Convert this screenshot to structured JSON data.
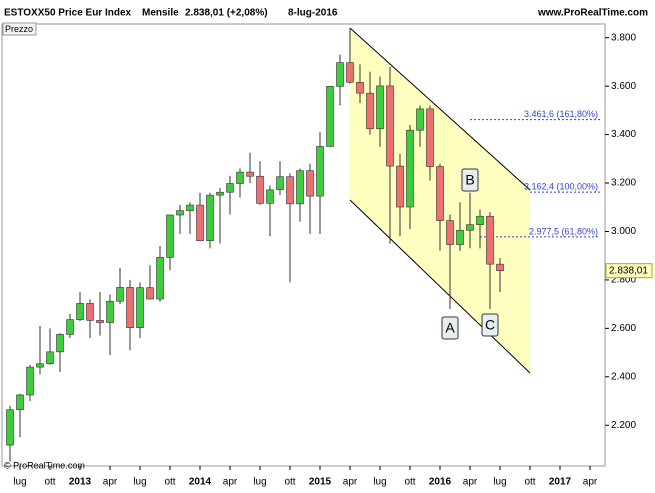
{
  "chart_data": {
    "type": "candlestick",
    "title": "ESTOXX50 Price Eur Index",
    "period": "Mensile",
    "last": "2.838,01 (+2,08%)",
    "date": "8-lug-2016",
    "source": "www.ProRealTime.com",
    "panel_label": "Prezzo",
    "copyright": "© ProRealTime.com",
    "x": [
      "2012-06",
      "2012-07",
      "2012-08",
      "2012-09",
      "2012-10",
      "2012-11",
      "2012-12",
      "2013-01",
      "2013-02",
      "2013-03",
      "2013-04",
      "2013-05",
      "2013-06",
      "2013-07",
      "2013-08",
      "2013-09",
      "2013-10",
      "2013-11",
      "2013-12",
      "2014-01",
      "2014-02",
      "2014-03",
      "2014-04",
      "2014-05",
      "2014-06",
      "2014-07",
      "2014-08",
      "2014-09",
      "2014-10",
      "2014-11",
      "2014-12",
      "2015-01",
      "2015-02",
      "2015-03",
      "2015-04",
      "2015-05",
      "2015-06",
      "2015-07",
      "2015-08",
      "2015-09",
      "2015-10",
      "2015-11",
      "2015-12",
      "2016-01",
      "2016-02",
      "2016-03",
      "2016-04",
      "2016-05",
      "2016-06",
      "2016-07"
    ],
    "open": [
      2118,
      2264,
      2325,
      2440,
      2454,
      2503,
      2575,
      2636,
      2703,
      2633,
      2624,
      2712,
      2769,
      2603,
      2768,
      2721,
      2893,
      3068,
      3086,
      3109,
      2962,
      3150,
      3162,
      3198,
      3245,
      3228,
      3116,
      3172,
      3226,
      3114,
      3251,
      3146,
      3351,
      3599,
      3697,
      3616,
      3571,
      3424,
      3601,
      3270,
      3101,
      3418,
      3506,
      3268,
      3045,
      2946,
      3005,
      3028,
      3063,
      2865
    ],
    "high": [
      2280,
      2330,
      2450,
      2610,
      2600,
      2580,
      2660,
      2750,
      2720,
      2750,
      2740,
      2850,
      2800,
      2790,
      2860,
      2940,
      3070,
      3110,
      3120,
      3160,
      3160,
      3180,
      3230,
      3260,
      3325,
      3290,
      3190,
      3290,
      3240,
      3260,
      3280,
      3410,
      3600,
      3730,
      3840,
      3690,
      3660,
      3640,
      3680,
      3320,
      3440,
      3520,
      3520,
      3280,
      3070,
      3120,
      3160,
      3090,
      3080,
      2890
    ],
    "low": [
      2050,
      2150,
      2300,
      2410,
      2450,
      2420,
      2560,
      2630,
      2560,
      2570,
      2490,
      2700,
      2510,
      2560,
      2720,
      2710,
      2840,
      2990,
      2990,
      2960,
      2930,
      2950,
      3070,
      3140,
      3200,
      3110,
      2980,
      3150,
      2790,
      3040,
      2990,
      2990,
      3350,
      3520,
      3610,
      3530,
      3400,
      3350,
      2950,
      2980,
      3010,
      3350,
      3210,
      2920,
      2680,
      2920,
      2930,
      2930,
      2680,
      2750
    ],
    "close": [
      2264,
      2325,
      2440,
      2454,
      2503,
      2575,
      2636,
      2703,
      2633,
      2624,
      2712,
      2769,
      2603,
      2768,
      2721,
      2893,
      3068,
      3086,
      3109,
      2962,
      3150,
      3162,
      3198,
      3245,
      3228,
      3116,
      3172,
      3226,
      3114,
      3251,
      3146,
      3351,
      3599,
      3697,
      3616,
      3571,
      3424,
      3601,
      3270,
      3101,
      3418,
      3506,
      3268,
      3045,
      2946,
      3005,
      3028,
      3063,
      2865,
      2838.01
    ],
    "up_color": "#3ccc3c",
    "down_color": "#f06e6e",
    "xlim": [
      "2012-05",
      "2017-05"
    ],
    "xticks": [
      {
        "value": "2012-07",
        "label": "lug"
      },
      {
        "value": "2012-10",
        "label": "ott"
      },
      {
        "value": "2013-01",
        "label": "2013"
      },
      {
        "value": "2013-04",
        "label": "apr"
      },
      {
        "value": "2013-07",
        "label": "lug"
      },
      {
        "value": "2013-10",
        "label": "ott"
      },
      {
        "value": "2014-01",
        "label": "2014"
      },
      {
        "value": "2014-04",
        "label": "apr"
      },
      {
        "value": "2014-07",
        "label": "lug"
      },
      {
        "value": "2014-10",
        "label": "ott"
      },
      {
        "value": "2015-01",
        "label": "2015"
      },
      {
        "value": "2015-04",
        "label": "apr"
      },
      {
        "value": "2015-07",
        "label": "lug"
      },
      {
        "value": "2015-10",
        "label": "ott"
      },
      {
        "value": "2016-01",
        "label": "2016"
      },
      {
        "value": "2016-04",
        "label": "apr"
      },
      {
        "value": "2016-07",
        "label": "lug"
      },
      {
        "value": "2016-10",
        "label": "ott"
      },
      {
        "value": "2017-01",
        "label": "2017"
      },
      {
        "value": "2017-04",
        "label": "apr"
      }
    ],
    "ylim": [
      2040,
      3840
    ],
    "yticks": [
      {
        "value": 2200,
        "label": "2.200"
      },
      {
        "value": 2400,
        "label": "2.400"
      },
      {
        "value": 2600,
        "label": "2.600"
      },
      {
        "value": 2800,
        "label": "2.800"
      },
      {
        "value": 3000,
        "label": "3.000"
      },
      {
        "value": 3200,
        "label": "3.200"
      },
      {
        "value": 3400,
        "label": "3.400"
      },
      {
        "value": 3600,
        "label": "3.600"
      },
      {
        "value": 3800,
        "label": "3.800"
      }
    ],
    "last_price": {
      "value": 2838.01,
      "label": "2.838,01"
    },
    "levels": [
      {
        "value": 3461.6,
        "label": "3.461,6 (161,80%)"
      },
      {
        "value": 3162.4,
        "label": "3.162,4 (100,00%)"
      },
      {
        "value": 2977.5,
        "label": "2.977,5 (61,80%)"
      }
    ],
    "annotations": [
      "A",
      "B",
      "C"
    ]
  }
}
